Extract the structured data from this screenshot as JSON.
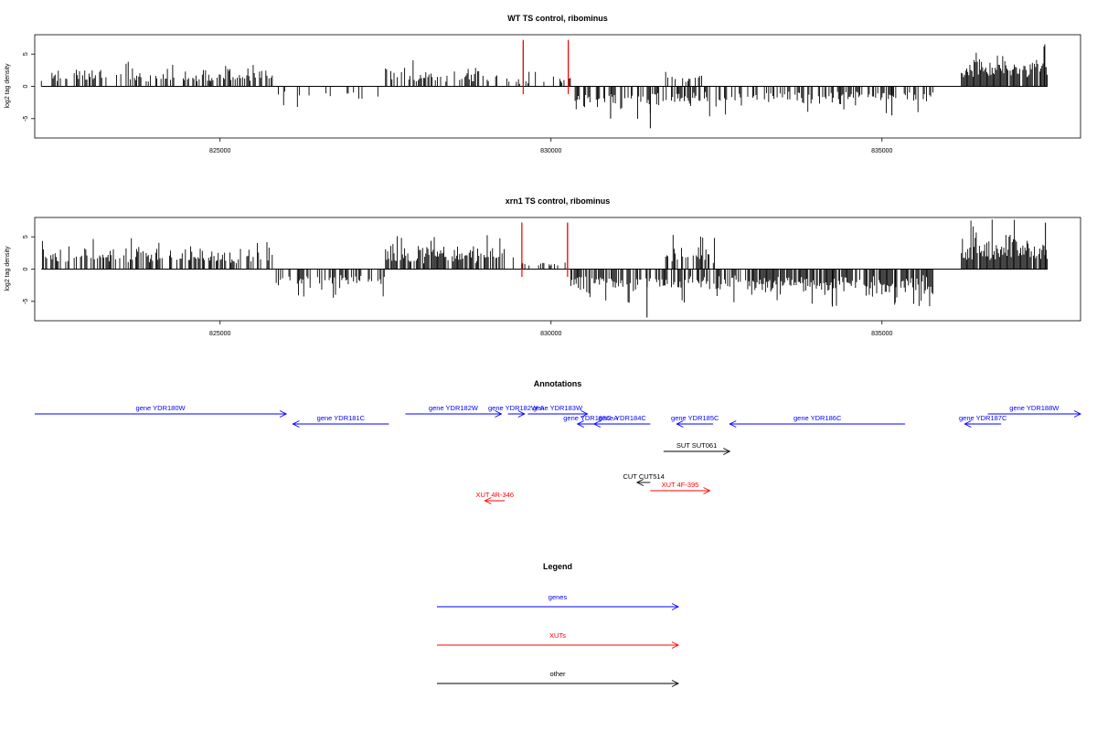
{
  "panels": [
    {
      "title": "WT TS control, ribominus",
      "ylabel": "log2 tag density",
      "chart_data": {
        "type": "bar",
        "title": "WT TS control, ribominus",
        "xlabel": "",
        "ylabel": "log2 tag density",
        "xlim": [
          822200,
          838000
        ],
        "ylim": [
          -8,
          8
        ],
        "yticks": [
          -5,
          0,
          5
        ],
        "xticks": [
          825000,
          830000,
          835000
        ],
        "xtick_labels": [
          "825000",
          "830000",
          "835000"
        ],
        "segments": [
          {
            "start": 822300,
            "end": 825800,
            "strand": "+",
            "max": 3.0,
            "density": 0.45
          },
          {
            "start": 825800,
            "end": 827500,
            "strand": "-",
            "max": 2.5,
            "density": 0.1
          },
          {
            "start": 827500,
            "end": 829200,
            "strand": "+",
            "max": 3.2,
            "density": 0.55
          },
          {
            "start": 829300,
            "end": 830300,
            "strand": "+",
            "max": 1.8,
            "density": 0.25
          },
          {
            "start": 830300,
            "end": 833000,
            "strand": "-",
            "max": 4.0,
            "density": 0.5
          },
          {
            "start": 831700,
            "end": 832300,
            "strand": "+",
            "max": 2.2,
            "density": 0.3
          },
          {
            "start": 833000,
            "end": 835800,
            "strand": "-",
            "max": 3.2,
            "density": 0.45
          },
          {
            "start": 836200,
            "end": 837500,
            "strand": "+",
            "max": 5.0,
            "density": 0.95
          }
        ],
        "spikes": [
          {
            "x": 829580,
            "y": 7.0
          },
          {
            "x": 830260,
            "y": 7.0
          },
          {
            "x": 831500,
            "y": -6.5
          },
          {
            "x": 837460,
            "y": 6.5
          },
          {
            "x": 835150,
            "y": -4.5
          },
          {
            "x": 830900,
            "y": -5.0
          }
        ],
        "highlights": [
          829580,
          830260
        ]
      }
    },
    {
      "title": "xrn1 TS control, ribominus",
      "ylabel": "log2 tag density",
      "chart_data": {
        "type": "bar",
        "title": "xrn1 TS control, ribominus",
        "xlabel": "",
        "ylabel": "log2 tag density",
        "xlim": [
          822200,
          838000
        ],
        "ylim": [
          -8,
          8
        ],
        "yticks": [
          -5,
          0,
          5
        ],
        "xticks": [
          825000,
          830000,
          835000
        ],
        "xtick_labels": [
          "825000",
          "830000",
          "835000"
        ],
        "segments": [
          {
            "start": 822300,
            "end": 825800,
            "strand": "+",
            "max": 4.0,
            "density": 0.6
          },
          {
            "start": 825800,
            "end": 827500,
            "strand": "-",
            "max": 3.5,
            "density": 0.55
          },
          {
            "start": 827500,
            "end": 829300,
            "strand": "+",
            "max": 4.2,
            "density": 0.7
          },
          {
            "start": 829300,
            "end": 830300,
            "strand": "+",
            "max": 1.5,
            "density": 0.25
          },
          {
            "start": 830300,
            "end": 833000,
            "strand": "-",
            "max": 4.0,
            "density": 0.6
          },
          {
            "start": 831700,
            "end": 832500,
            "strand": "+",
            "max": 4.5,
            "density": 0.55
          },
          {
            "start": 833000,
            "end": 835800,
            "strand": "-",
            "max": 4.5,
            "density": 0.8
          },
          {
            "start": 836200,
            "end": 837500,
            "strand": "+",
            "max": 6.0,
            "density": 0.98
          }
        ],
        "spikes": [
          {
            "x": 829560,
            "y": 7.2
          },
          {
            "x": 830250,
            "y": 7.2
          },
          {
            "x": 831450,
            "y": -7.5
          },
          {
            "x": 837470,
            "y": 7.2
          },
          {
            "x": 834250,
            "y": -5.8
          },
          {
            "x": 835200,
            "y": -5.2
          }
        ],
        "highlights": [
          829560,
          830250
        ]
      }
    }
  ],
  "annotations": {
    "title": "Annotations",
    "items": [
      {
        "label": "gene YDR180W",
        "start": 822200,
        "end": 826000,
        "strand": "+",
        "row": 0,
        "type": "gene"
      },
      {
        "label": "gene YDR181C",
        "start": 826100,
        "end": 827550,
        "strand": "-",
        "row": 1,
        "type": "gene"
      },
      {
        "label": "gene YDR182W",
        "start": 827800,
        "end": 829250,
        "strand": "+",
        "row": 0,
        "type": "gene"
      },
      {
        "label": "gene YDR182W-A",
        "start": 829350,
        "end": 829600,
        "strand": "+",
        "row": 0,
        "type": "gene"
      },
      {
        "label": "gene YDR183W",
        "start": 829650,
        "end": 830550,
        "strand": "+",
        "row": 0,
        "type": "gene"
      },
      {
        "label": "gene YDR183C-A",
        "start": 830400,
        "end": 830800,
        "strand": "-",
        "row": 1,
        "type": "gene"
      },
      {
        "label": "gene YDR184C",
        "start": 830650,
        "end": 831500,
        "strand": "-",
        "row": 1,
        "type": "gene"
      },
      {
        "label": "gene YDR185C",
        "start": 831900,
        "end": 832450,
        "strand": "-",
        "row": 1,
        "type": "gene"
      },
      {
        "label": "gene YDR186C",
        "start": 832700,
        "end": 835350,
        "strand": "-",
        "row": 1,
        "type": "gene"
      },
      {
        "label": "gene YDR187C",
        "start": 836250,
        "end": 836800,
        "strand": "-",
        "row": 1,
        "type": "gene"
      },
      {
        "label": "gene YDR188W",
        "start": 836600,
        "end": 838000,
        "strand": "+",
        "row": 0,
        "type": "gene"
      },
      {
        "label": "SUT SUT061",
        "start": 831700,
        "end": 832700,
        "strand": "+",
        "row": 3,
        "type": "other"
      },
      {
        "label": "CUT CUT514",
        "start": 831300,
        "end": 831500,
        "strand": "-",
        "row": 5,
        "type": "other"
      },
      {
        "label": "XUT 4F-395",
        "start": 831500,
        "end": 832400,
        "strand": "+",
        "row": 6,
        "type": "XUT"
      },
      {
        "label": "XUT 4R-346",
        "start": 829000,
        "end": 829300,
        "strand": "-",
        "row": 7,
        "type": "XUT"
      }
    ]
  },
  "legend": {
    "title": "Legend",
    "items": [
      {
        "label": "genes",
        "color": "#0000ff"
      },
      {
        "label": "XUTs",
        "color": "#ff0000"
      },
      {
        "label": "other",
        "color": "#000000"
      }
    ]
  },
  "colors": {
    "gene": "#0000ff",
    "XUT": "#ff0000",
    "other": "#000000",
    "bars": "#000000",
    "highlight": "#ff0000"
  }
}
